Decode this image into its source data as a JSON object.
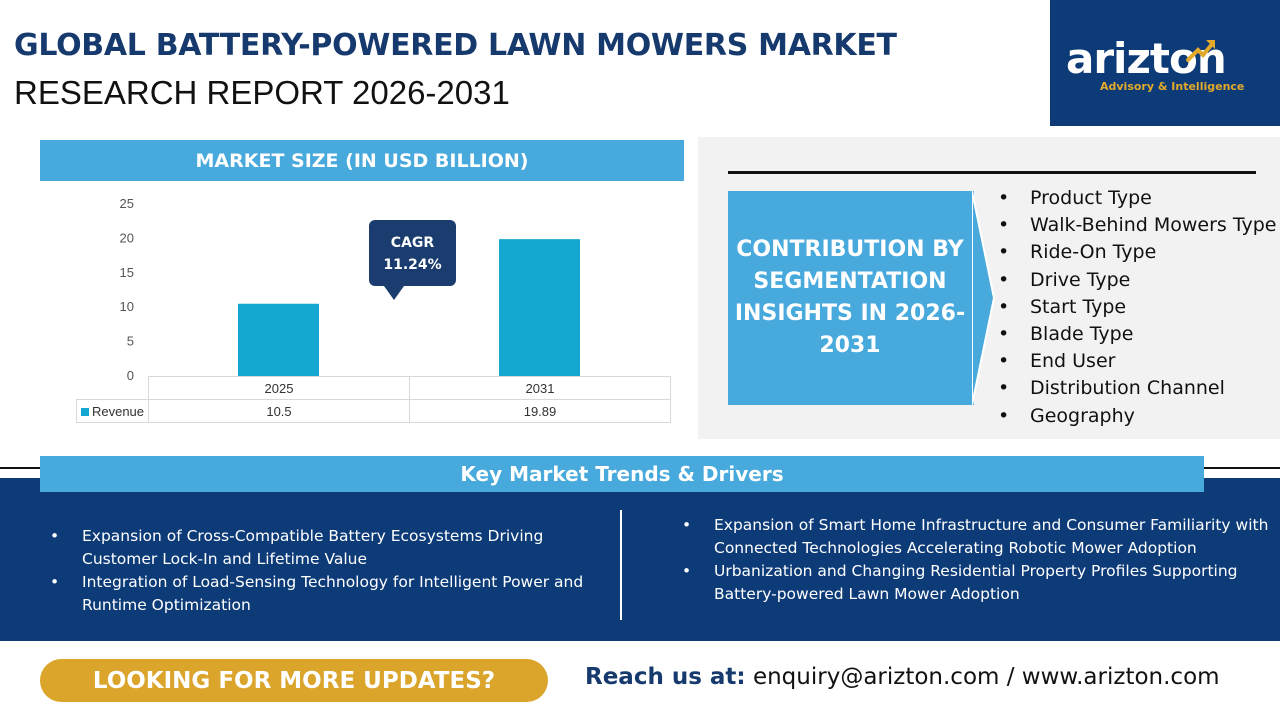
{
  "header": {
    "title_line1": "GLOBAL BATTERY-POWERED LAWN MOWERS MARKET",
    "title_line2": "RESEARCH REPORT 2026-2031"
  },
  "logo": {
    "wordmark": "arizton",
    "tagline": "Advisory & Intelligence",
    "accent_color": "#e2a92a"
  },
  "market_size": {
    "heading": "MARKET SIZE (IN USD BILLION)",
    "cagr_label": "CAGR",
    "cagr_value": "11.24%"
  },
  "chart_data": {
    "type": "bar",
    "categories": [
      "2025",
      "2031"
    ],
    "series": [
      {
        "name": "Revenue",
        "values": [
          10.5,
          19.89
        ]
      }
    ],
    "value_labels": [
      "10.5",
      "19.89"
    ],
    "yticks": [
      "0",
      "5",
      "10",
      "15",
      "20",
      "25"
    ],
    "ylim": [
      0,
      25
    ],
    "bar_color": "#14a7cf",
    "grid": false,
    "legend": "data-table"
  },
  "segmentation": {
    "heading": "CONTRIBUTION BY SEGMENTATION INSIGHTS IN 2026-2031",
    "items": [
      "Product Type",
      "Walk-Behind Mowers Type",
      "Ride-On Type",
      "Drive Type",
      "Start Type",
      "Blade Type",
      "End User",
      "Distribution Channel",
      "Geography"
    ]
  },
  "trends": {
    "heading": "Key Market Trends & Drivers",
    "left": [
      "Expansion of Cross-Compatible Battery Ecosystems Driving Customer Lock-In and Lifetime Value",
      "Integration of Load-Sensing Technology for Intelligent Power and Runtime Optimization"
    ],
    "right": [
      "Expansion of Smart Home Infrastructure and Consumer Familiarity with Connected Technologies Accelerating Robotic Mower Adoption",
      "Urbanization and Changing Residential Property Profiles Supporting Battery-powered Lawn Mower Adoption"
    ]
  },
  "footer": {
    "cta": "LOOKING FOR MORE UPDATES?",
    "contact_label": "Reach us at:",
    "contact_value": "enquiry@arizton.com / www.arizton.com"
  }
}
